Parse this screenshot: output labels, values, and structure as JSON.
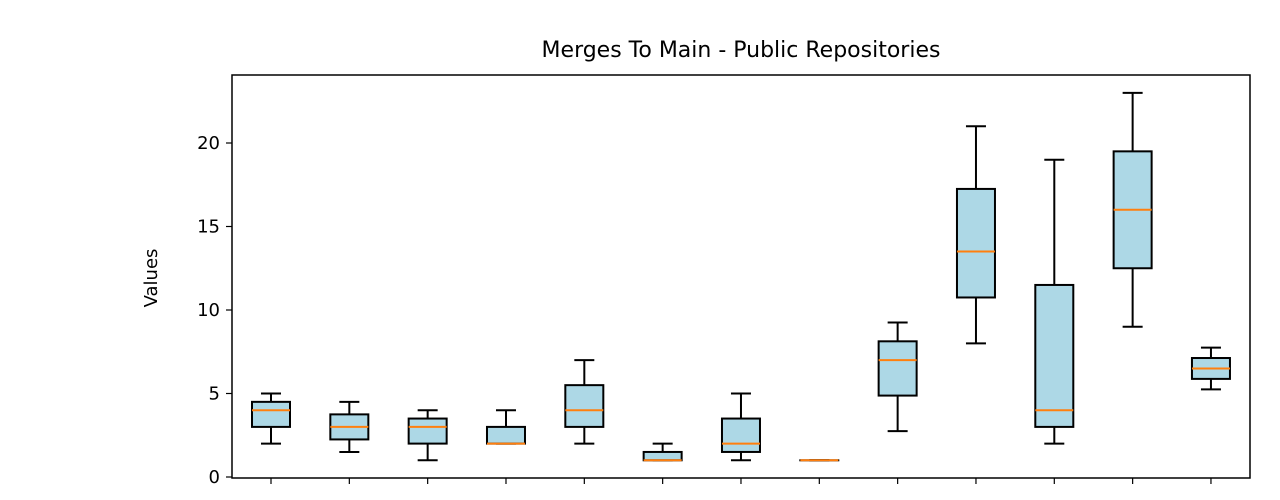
{
  "chart_data": {
    "type": "boxplot",
    "title": "Merges To Main - Public Repositories",
    "xlabel": "",
    "ylabel": "Values",
    "ylim": [
      0,
      24
    ],
    "yticks": [
      0,
      5,
      10,
      15,
      20
    ],
    "grid": false,
    "legend": "none",
    "box_fill": "#add8e6",
    "median_color": "#ff7f0e",
    "line_color": "#000000",
    "boxes": [
      {
        "whisker_low": 2,
        "q1": 3,
        "median": 4,
        "q3": 4.5,
        "whisker_high": 5
      },
      {
        "whisker_low": 1.5,
        "q1": 2.25,
        "median": 3,
        "q3": 3.75,
        "whisker_high": 4.5
      },
      {
        "whisker_low": 1,
        "q1": 2,
        "median": 3,
        "q3": 3.5,
        "whisker_high": 4
      },
      {
        "whisker_low": 2,
        "q1": 2,
        "median": 2,
        "q3": 3,
        "whisker_high": 4
      },
      {
        "whisker_low": 2,
        "q1": 3,
        "median": 4,
        "q3": 5.5,
        "whisker_high": 7
      },
      {
        "whisker_low": 1,
        "q1": 1,
        "median": 1,
        "q3": 1.5,
        "whisker_high": 2
      },
      {
        "whisker_low": 1,
        "q1": 1.5,
        "median": 2,
        "q3": 3.5,
        "whisker_high": 5
      },
      {
        "whisker_low": 1,
        "q1": 1,
        "median": 1,
        "q3": 1,
        "whisker_high": 1
      },
      {
        "whisker_low": 2.75,
        "q1": 4.875,
        "median": 7,
        "q3": 8.125,
        "whisker_high": 9.25
      },
      {
        "whisker_low": 8,
        "q1": 10.75,
        "median": 13.5,
        "q3": 17.25,
        "whisker_high": 21
      },
      {
        "whisker_low": 2,
        "q1": 3,
        "median": 4,
        "q3": 11.5,
        "whisker_high": 19
      },
      {
        "whisker_low": 9,
        "q1": 12.5,
        "median": 16,
        "q3": 19.5,
        "whisker_high": 23
      },
      {
        "whisker_low": 5.25,
        "q1": 5.875,
        "median": 6.5,
        "q3": 7.125,
        "whisker_high": 7.75
      }
    ]
  }
}
